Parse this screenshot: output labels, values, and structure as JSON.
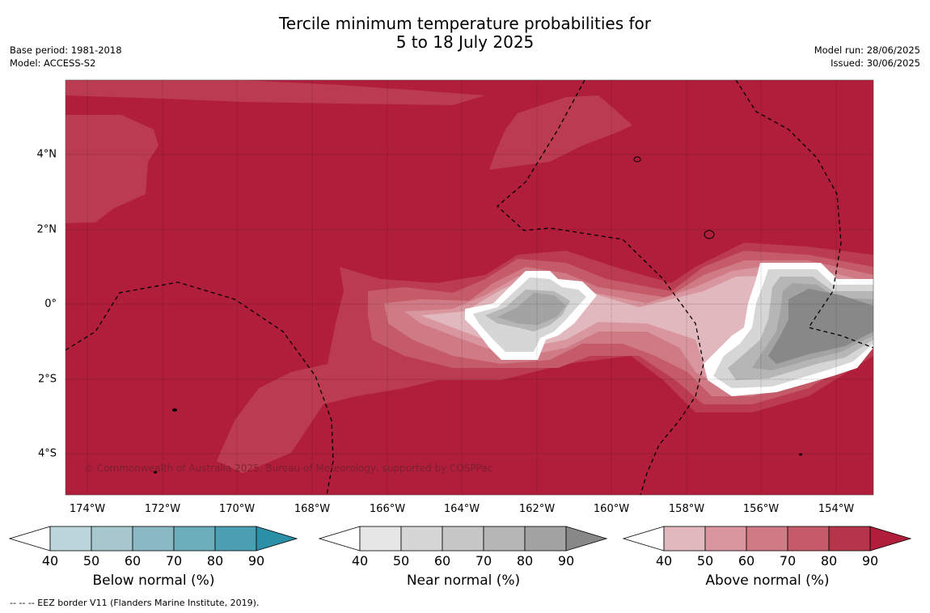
{
  "title_line1": "Tercile minimum temperature probabilities for",
  "title_line2": "5 to 18 July 2025",
  "base_period": "Base period: 1981-2018",
  "model": "Model: ACCESS-S2",
  "model_run": "Model run: 28/06/2025",
  "issued": "Issued: 30/06/2025",
  "copyright": "© Commonwealth of Australia 2025, Bureau of Meteorology, supported by COSPPac",
  "footer": "--  --  -- EEZ border V11 (Flanders Marine Institute, 2019).",
  "lat_labels": [
    "4°N",
    "2°N",
    "0°",
    "2°S",
    "4°S"
  ],
  "lon_labels": [
    "174°W",
    "172°W",
    "170°W",
    "168°W",
    "166°W",
    "164°W",
    "162°W",
    "160°W",
    "158°W",
    "156°W",
    "154°W"
  ],
  "colorbars": [
    {
      "label": "Below normal (%)",
      "ticks": [
        "40",
        "50",
        "60",
        "70",
        "80",
        "90"
      ],
      "colors": [
        "#ffffff",
        "#bdd5dc",
        "#a6c7ce",
        "#8ab8c3",
        "#6aaebc",
        "#4aa0b2",
        "#2b8fa6"
      ]
    },
    {
      "label": "Near normal (%)",
      "ticks": [
        "40",
        "50",
        "60",
        "70",
        "80",
        "90"
      ],
      "colors": [
        "#ffffff",
        "#e6e6e6",
        "#d6d6d6",
        "#c6c6c6",
        "#b6b6b6",
        "#a3a3a3",
        "#888888"
      ]
    },
    {
      "label": "Above normal (%)",
      "ticks": [
        "40",
        "50",
        "60",
        "70",
        "80",
        "90"
      ],
      "colors": [
        "#ffffff",
        "#e1b8be",
        "#d9969f",
        "#cf7a85",
        "#c55b68",
        "#b7354a",
        "#b01e3b"
      ]
    }
  ],
  "map_colors": {
    "above_90": "#b01e3b",
    "above_80": "#bb3b50",
    "above_70": "#c55b68",
    "above_60": "#cf7a85",
    "above_50": "#d9969f",
    "above_40": "#e1b8be",
    "near_60": "#c6c6c6",
    "near_70": "#b6b6b6",
    "near_80": "#a3a3a3",
    "near_90": "#888888",
    "near_50": "#d6d6d6"
  }
}
